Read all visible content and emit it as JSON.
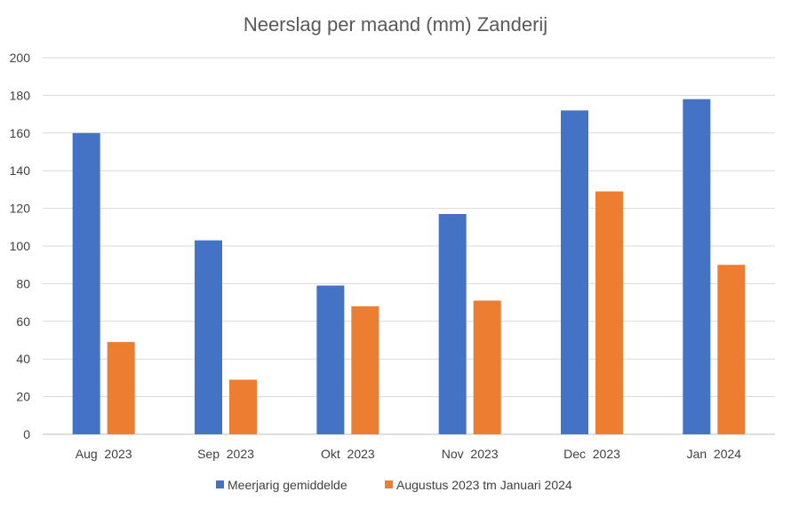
{
  "chart_data": {
    "type": "bar",
    "title": "Neerslag per maand (mm) Zanderij",
    "categories": [
      "Aug  2023",
      "Sep  2023",
      "Okt  2023",
      "Nov  2023",
      "Dec  2023",
      "Jan  2024"
    ],
    "series": [
      {
        "name": "Meerjarig gemiddelde",
        "color": "#4472C4",
        "values": [
          160,
          103,
          79,
          117,
          172,
          178
        ]
      },
      {
        "name": "Augustus 2023 tm Januari 2024",
        "color": "#ED7D31",
        "values": [
          49,
          29,
          68,
          71,
          129,
          90
        ]
      }
    ],
    "yticks": [
      "0",
      "20",
      "40",
      "60",
      "80",
      "100",
      "120",
      "140",
      "160",
      "180",
      "200"
    ],
    "ylim": [
      0,
      200
    ],
    "grid": true,
    "legend_position": "bottom"
  }
}
